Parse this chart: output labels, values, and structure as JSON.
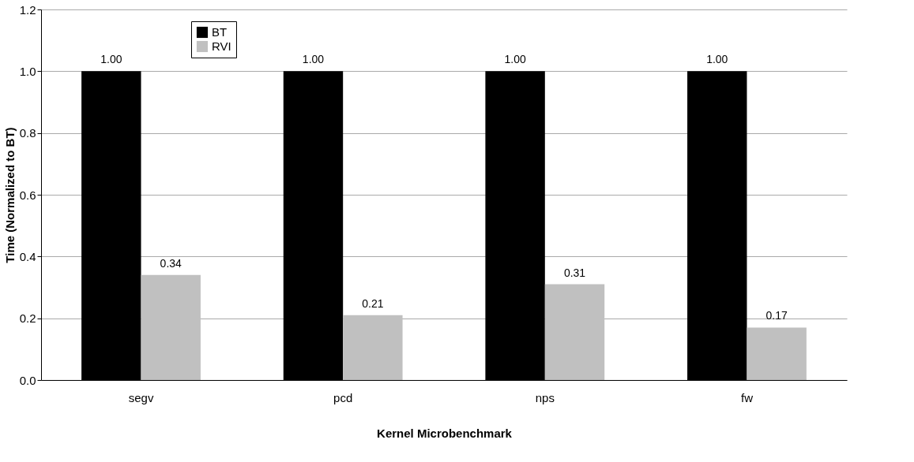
{
  "chart_data": {
    "type": "bar",
    "xlabel": "Kernel Microbenchmark",
    "ylabel": "Time (Normalized to BT)",
    "categories": [
      "segv",
      "pcd",
      "nps",
      "fw"
    ],
    "series": [
      {
        "name": "BT",
        "color": "#000000",
        "values": [
          1.0,
          1.0,
          1.0,
          1.0
        ],
        "value_labels": [
          "1.00",
          "1.00",
          "1.00",
          "1.00"
        ]
      },
      {
        "name": "RVI",
        "color": "#c0c0c0",
        "values": [
          0.34,
          0.21,
          0.31,
          0.17
        ],
        "value_labels": [
          "0.34",
          "0.21",
          "0.31",
          "0.17"
        ]
      }
    ],
    "ylim": [
      0,
      1.2
    ],
    "yticks": [
      {
        "value": 0,
        "label": "0.0"
      },
      0.2,
      0.4,
      0.6,
      0.8,
      {
        "value": 1,
        "label": "1.0"
      },
      1.2
    ],
    "grid": "y",
    "legend": "top left"
  }
}
